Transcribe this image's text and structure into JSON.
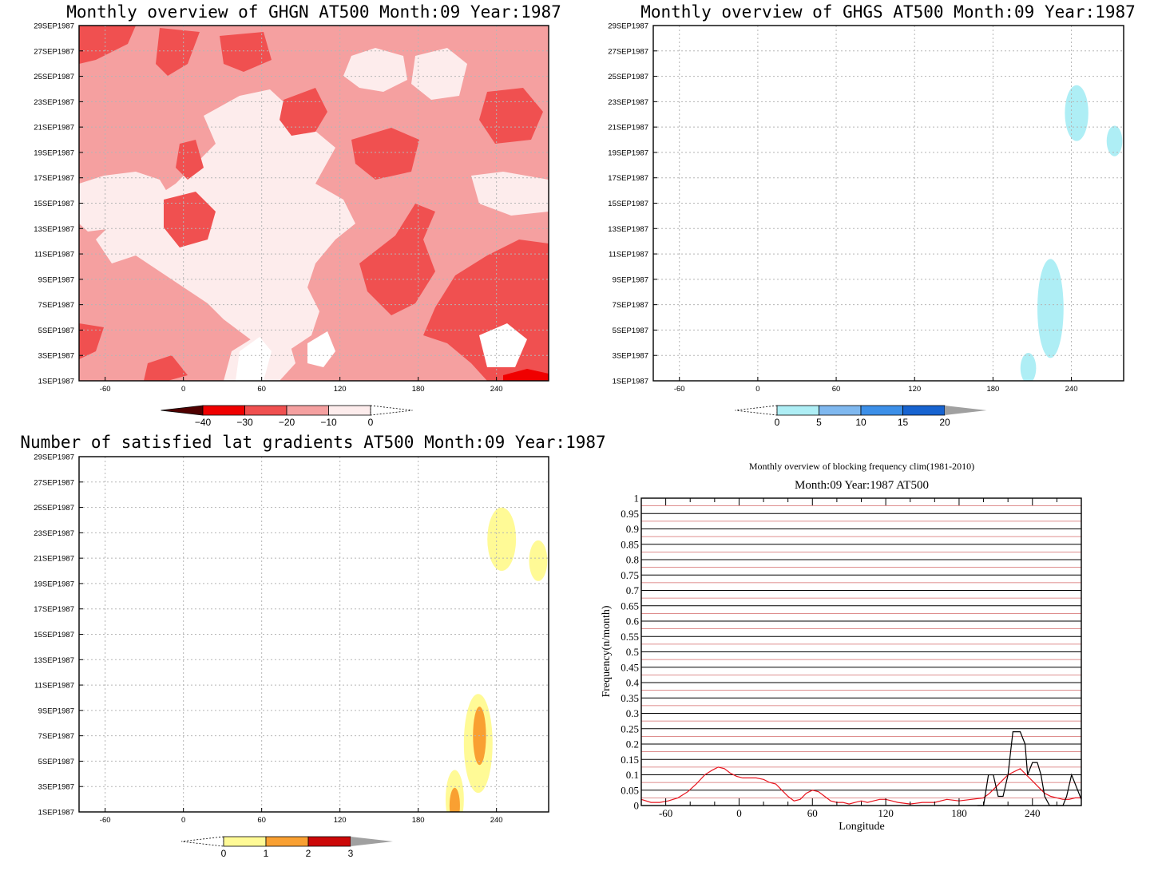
{
  "colors": {
    "ghgn": [
      "#500000",
      "#f00000",
      "#f05050",
      "#f5a0a0",
      "#fdecec"
    ],
    "ghgs": [
      "#aeeef5",
      "#7fb8ef",
      "#3c8fe8",
      "#1763d0"
    ],
    "lat": [
      "#fffa96",
      "#f9a032",
      "#cc0808"
    ],
    "clim_line": "#e8141e",
    "year_line": "#000000",
    "terminal": "#a0a0a0"
  },
  "chart_data": [
    {
      "id": "ghgn",
      "type": "heatmap",
      "title": "Monthly overview of GHGN AT500 Month:09 Year:1987",
      "xticks": [
        -60,
        0,
        60,
        120,
        180,
        240
      ],
      "xlim": [
        -80,
        280
      ],
      "yticks": [
        "1SEP1987",
        "3SEP1987",
        "5SEP1987",
        "7SEP1987",
        "9SEP1987",
        "11SEP1987",
        "13SEP1987",
        "15SEP1987",
        "17SEP1987",
        "19SEP1987",
        "21SEP1987",
        "23SEP1987",
        "25SEP1987",
        "27SEP1987",
        "29SEP1987"
      ],
      "ylim": [
        1,
        29
      ],
      "colorbar": {
        "levels": [
          -40,
          -30,
          -20,
          -10,
          0
        ],
        "labels": [
          "−40",
          "−30",
          "−20",
          "−10",
          "0"
        ]
      }
    },
    {
      "id": "ghgs",
      "type": "heatmap",
      "title": "Monthly overview of GHGS AT500 Month:09 Year:1987",
      "xticks": [
        -60,
        0,
        60,
        120,
        180,
        240
      ],
      "xlim": [
        -80,
        280
      ],
      "yticks": [
        "1SEP1987",
        "3SEP1987",
        "5SEP1987",
        "7SEP1987",
        "9SEP1987",
        "11SEP1987",
        "13SEP1987",
        "15SEP1987",
        "17SEP1987",
        "19SEP1987",
        "21SEP1987",
        "23SEP1987",
        "25SEP1987",
        "27SEP1987",
        "29SEP1987"
      ],
      "ylim": [
        1,
        29
      ],
      "regions": [
        {
          "lon": 244,
          "day": 22.1,
          "rlon": 9,
          "rday": 2.2,
          "level": 0
        },
        {
          "lon": 273,
          "day": 19.9,
          "rlon": 6,
          "rday": 1.2,
          "level": 0
        },
        {
          "lon": 224,
          "day": 6.7,
          "rlon": 10,
          "rday": 3.9,
          "level": 0
        },
        {
          "lon": 207,
          "day": 2.0,
          "rlon": 6,
          "rday": 1.2,
          "level": 0
        }
      ],
      "colorbar": {
        "levels": [
          0,
          5,
          10,
          15,
          20
        ],
        "labels": [
          "0",
          "5",
          "10",
          "15",
          "20"
        ]
      }
    },
    {
      "id": "lat",
      "type": "heatmap",
      "title": "Number of satisfied lat gradients AT500 Month:09 Year:1987",
      "xticks": [
        -60,
        0,
        60,
        120,
        180,
        240
      ],
      "xlim": [
        -80,
        280
      ],
      "yticks": [
        "1SEP1987",
        "3SEP1987",
        "5SEP1987",
        "7SEP1987",
        "9SEP1987",
        "11SEP1987",
        "13SEP1987",
        "15SEP1987",
        "17SEP1987",
        "19SEP1987",
        "21SEP1987",
        "23SEP1987",
        "25SEP1987",
        "27SEP1987",
        "29SEP1987"
      ],
      "ylim": [
        1,
        29
      ],
      "regions": [
        {
          "lon": 244,
          "day": 22.5,
          "rlon": 11,
          "rday": 2.5,
          "level": 0
        },
        {
          "lon": 272,
          "day": 20.8,
          "rlon": 7,
          "rday": 1.6,
          "level": 0
        },
        {
          "lon": 226,
          "day": 6.4,
          "rlon": 11,
          "rday": 3.9,
          "level": 0
        },
        {
          "lon": 227,
          "day": 7.0,
          "rlon": 5,
          "rday": 2.3,
          "level": 1
        },
        {
          "lon": 208,
          "day": 2.0,
          "rlon": 7,
          "rday": 2.3,
          "level": 0
        },
        {
          "lon": 208,
          "day": 1.5,
          "rlon": 4,
          "rday": 1.4,
          "level": 1
        }
      ],
      "colorbar": {
        "levels": [
          0,
          1,
          2,
          3
        ],
        "labels": [
          "0",
          "1",
          "2",
          "3"
        ]
      }
    },
    {
      "id": "freq",
      "type": "line",
      "title": "Monthly overview of blocking frequency clim(1981-2010)",
      "subtitle": "Month:09 Year:1987  AT500",
      "xlabel": "Longitude",
      "ylabel": "Frequency(n/month)",
      "xlim": [
        -80,
        280
      ],
      "ylim": [
        0,
        1
      ],
      "xticks": [
        -60,
        0,
        60,
        120,
        180,
        240
      ],
      "yticks": [
        0,
        0.05,
        0.1,
        0.15,
        0.2,
        0.25,
        0.3,
        0.35,
        0.4,
        0.45,
        0.5,
        0.55,
        0.6,
        0.65,
        0.7,
        0.75,
        0.8,
        0.85,
        0.9,
        0.95,
        1
      ],
      "ytick_labels": [
        "0",
        "0.05",
        "0.1",
        "0.15",
        "0.2",
        "0.25",
        "0.3",
        "0.35",
        "0.4",
        "0.45",
        "0.5",
        "0.55",
        "0.6",
        "0.65",
        "0.7",
        "0.75",
        "0.8",
        "0.85",
        "0.9",
        "0.95",
        "1"
      ],
      "series": [
        {
          "color": "red",
          "x": [
            -80,
            -72,
            -65,
            -58,
            -50,
            -42,
            -35,
            -28,
            -22,
            -17,
            -12,
            -7,
            -2,
            3,
            8,
            14,
            20,
            25,
            30,
            35,
            40,
            45,
            50,
            55,
            60,
            65,
            70,
            75,
            80,
            85,
            90,
            95,
            100,
            105,
            110,
            115,
            120,
            125,
            130,
            140,
            150,
            160,
            170,
            180,
            190,
            200,
            205,
            210,
            215,
            220,
            225,
            230,
            235,
            240,
            245,
            250,
            255,
            260,
            265,
            270,
            275,
            280
          ],
          "y": [
            0.02,
            0.01,
            0.01,
            0.015,
            0.025,
            0.045,
            0.07,
            0.1,
            0.115,
            0.125,
            0.12,
            0.105,
            0.095,
            0.09,
            0.09,
            0.09,
            0.085,
            0.075,
            0.07,
            0.05,
            0.03,
            0.015,
            0.02,
            0.04,
            0.05,
            0.045,
            0.03,
            0.015,
            0.01,
            0.01,
            0.005,
            0.01,
            0.015,
            0.01,
            0.015,
            0.02,
            0.02,
            0.015,
            0.01,
            0.005,
            0.01,
            0.01,
            0.02,
            0.015,
            0.02,
            0.025,
            0.04,
            0.06,
            0.08,
            0.1,
            0.11,
            0.12,
            0.1,
            0.08,
            0.06,
            0.04,
            0.03,
            0.025,
            0.02,
            0.02,
            0.025,
            0.025
          ]
        },
        {
          "color": "black",
          "x": [
            195,
            200,
            204,
            208,
            212,
            216,
            220,
            224,
            230,
            234,
            236,
            240,
            244,
            247,
            250,
            254,
            258,
            262,
            265,
            268,
            272,
            276,
            280
          ],
          "y": [
            0,
            0,
            0.1,
            0.1,
            0.03,
            0.03,
            0.1,
            0.24,
            0.24,
            0.2,
            0.1,
            0.14,
            0.14,
            0.1,
            0.03,
            0,
            0,
            0,
            0,
            0.03,
            0.1,
            0.06,
            0.02
          ]
        }
      ]
    }
  ]
}
